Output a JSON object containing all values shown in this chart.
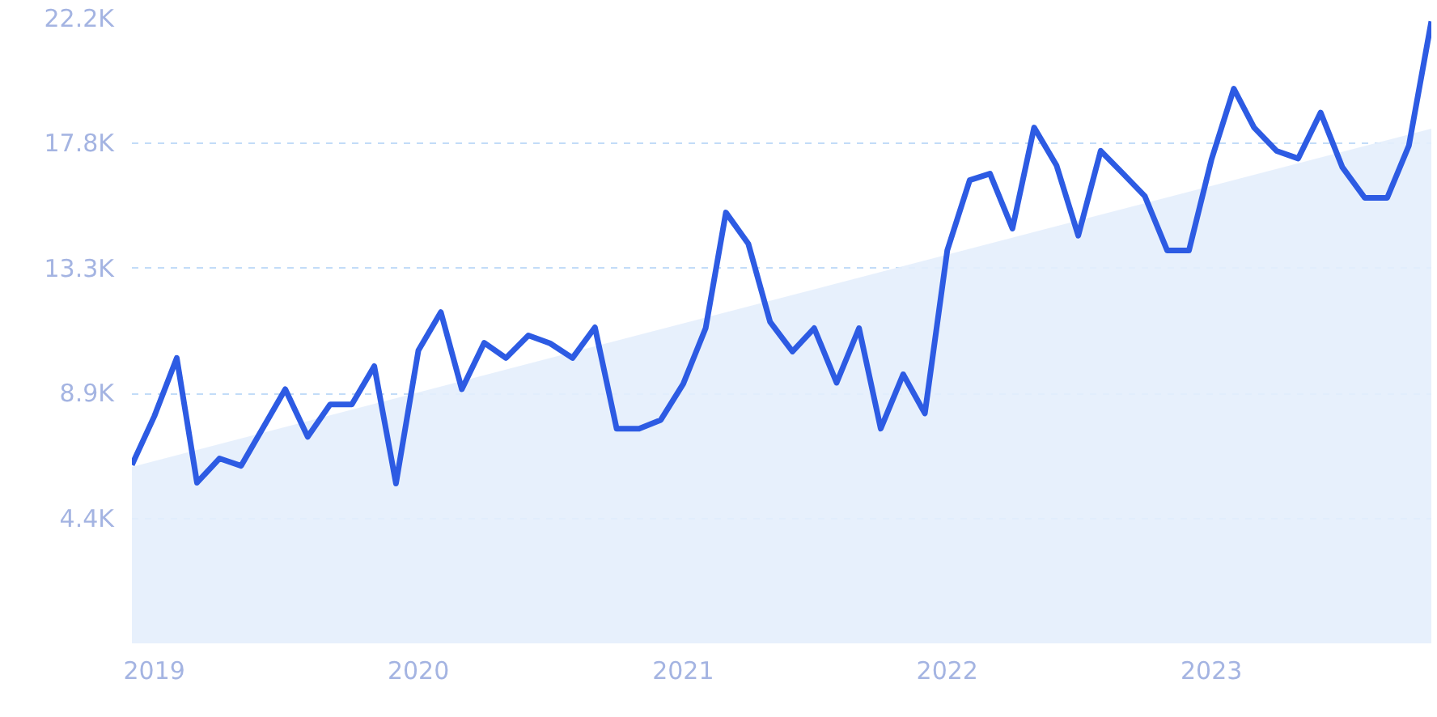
{
  "chart_data": {
    "type": "line",
    "x": [
      "2018-12",
      "2019-01",
      "2019-02",
      "2019-03",
      "2019-04",
      "2019-05",
      "2019-06",
      "2019-07",
      "2019-08",
      "2019-09",
      "2019-10",
      "2019-11",
      "2019-12",
      "2020-01",
      "2020-02",
      "2020-03",
      "2020-04",
      "2020-05",
      "2020-06",
      "2020-07",
      "2020-08",
      "2020-09",
      "2020-10",
      "2020-11",
      "2020-12",
      "2021-01",
      "2021-02",
      "2021-03",
      "2021-04",
      "2021-05",
      "2021-06",
      "2021-07",
      "2021-08",
      "2021-09",
      "2021-10",
      "2021-11",
      "2021-12",
      "2022-01",
      "2022-02",
      "2022-03",
      "2022-04",
      "2022-05",
      "2022-06",
      "2022-07",
      "2022-08",
      "2022-09",
      "2022-10",
      "2022-11",
      "2022-12",
      "2023-01",
      "2023-02",
      "2023-03",
      "2023-04",
      "2023-05",
      "2023-06",
      "2023-07",
      "2023-08",
      "2023-09",
      "2023-10",
      "2023-11"
    ],
    "series": [
      {
        "type": "area",
        "color": "#e4eefc",
        "x": [
          "2018-12",
          "2023-11"
        ],
        "values": [
          6270,
          18290
        ]
      },
      {
        "color": "#2d5be3",
        "values": [
          6340,
          8070,
          10140,
          5710,
          6570,
          6310,
          7690,
          9030,
          7340,
          8490,
          8490,
          9850,
          5680,
          10410,
          11770,
          9030,
          10680,
          10140,
          10940,
          10660,
          10140,
          11230,
          7630,
          7630,
          7940,
          9220,
          11200,
          15310,
          14200,
          11430,
          10370,
          11200,
          9260,
          11200,
          7630,
          9560,
          8170,
          13970,
          16460,
          16690,
          14740,
          18330,
          16980,
          14490,
          17500,
          16690,
          15890,
          13960,
          13960,
          17180,
          19710,
          18330,
          17500,
          17230,
          18860,
          16920,
          15830,
          15830,
          17690,
          22100
        ]
      }
    ],
    "xlim": [
      "2018-12",
      "2023-11"
    ],
    "xticks": [
      {
        "value": "2019-01",
        "label": "2019"
      },
      {
        "value": "2020-01",
        "label": "2020"
      },
      {
        "value": "2021-01",
        "label": "2021"
      },
      {
        "value": "2022-01",
        "label": "2022"
      },
      {
        "value": "2023-01",
        "label": "2023"
      }
    ],
    "ylim": [
      0,
      22200
    ],
    "yticks": [
      {
        "value": 4440,
        "label": "4.4K"
      },
      {
        "value": 8880,
        "label": "8.9K"
      },
      {
        "value": 13320,
        "label": "13.3K"
      },
      {
        "value": 17760,
        "label": "17.8K"
      },
      {
        "value": 22200,
        "label": "22.2K"
      }
    ],
    "grid": "y",
    "marker": "none",
    "line_style": "solid"
  }
}
